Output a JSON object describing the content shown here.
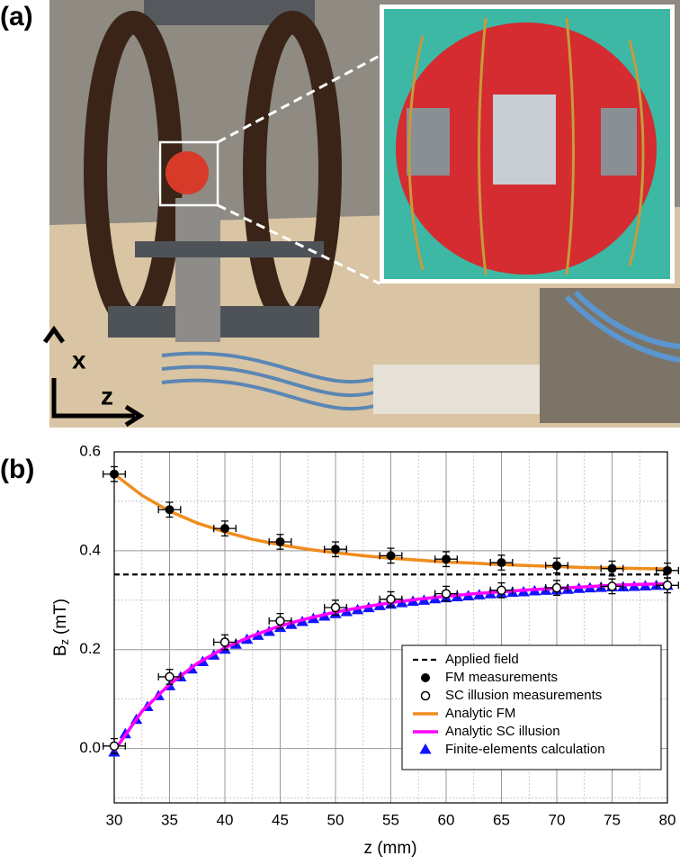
{
  "photo": {
    "panel_label": "(a)",
    "axis_labels": [
      "x",
      "z"
    ]
  },
  "chart_data": {
    "type": "line",
    "panel_label": "(b)",
    "xlabel": "z (mm)",
    "ylabel": [
      "B",
      "z",
      "(mT)"
    ],
    "xlim": [
      30,
      80
    ],
    "ylim": [
      -0.11,
      0.6
    ],
    "xticks": [
      30,
      35,
      40,
      45,
      50,
      55,
      60,
      65,
      70,
      75,
      80
    ],
    "yticks": [
      {
        "value": 0,
        "label": "0.0"
      },
      0.2,
      0.4,
      0.6
    ],
    "xticks_minor": [
      32.5,
      37.5,
      42.5,
      47.5,
      52.5,
      57.5,
      62.5,
      67.5,
      72.5,
      77.5
    ],
    "yticks_minor": [
      -0.1,
      0.1,
      0.3,
      0.5
    ],
    "grid": true,
    "legend": "lower right",
    "series": [
      {
        "name": "Applied field",
        "style": "dashed-hline",
        "color": "#000000",
        "values": [
          0.352
        ]
      },
      {
        "name": "FM measurements",
        "style": "marker-filled",
        "color": "#000000",
        "x": [
          30,
          35,
          40,
          45,
          50,
          55,
          60,
          65,
          70,
          75,
          80
        ],
        "values": [
          0.555,
          0.483,
          0.445,
          0.418,
          0.403,
          0.39,
          0.383,
          0.376,
          0.37,
          0.364,
          0.36
        ],
        "xerr": 1,
        "yerr": 0.015
      },
      {
        "name": "SC illusion measurements",
        "style": "marker-open",
        "color": "#000000",
        "x": [
          30,
          35,
          40,
          45,
          50,
          55,
          60,
          65,
          70,
          75,
          80
        ],
        "values": [
          0.005,
          0.145,
          0.215,
          0.258,
          0.285,
          0.302,
          0.313,
          0.32,
          0.325,
          0.328,
          0.33
        ],
        "xerr": 1,
        "yerr": 0.015
      },
      {
        "name": "Analytic FM",
        "style": "line",
        "color": "#f08c1e",
        "x": [
          30,
          32.5,
          35,
          37.5,
          40,
          42.5,
          45,
          47.5,
          50,
          52.5,
          55,
          57.5,
          60,
          62.5,
          65,
          67.5,
          70,
          72.5,
          75,
          77.5,
          80
        ],
        "values": [
          0.555,
          0.512,
          0.48,
          0.456,
          0.438,
          0.423,
          0.412,
          0.403,
          0.396,
          0.39,
          0.385,
          0.381,
          0.377,
          0.375,
          0.372,
          0.37,
          0.368,
          0.366,
          0.365,
          0.364,
          0.363
        ]
      },
      {
        "name": "Analytic SC illusion",
        "style": "line",
        "color": "#ff00ff",
        "x": [
          30,
          32.5,
          35,
          37.5,
          40,
          42.5,
          45,
          47.5,
          50,
          52.5,
          55,
          57.5,
          60,
          62.5,
          65,
          67.5,
          70,
          72.5,
          75,
          77.5,
          80
        ],
        "values": [
          -0.005,
          0.075,
          0.13,
          0.172,
          0.204,
          0.228,
          0.248,
          0.263,
          0.276,
          0.286,
          0.295,
          0.302,
          0.308,
          0.313,
          0.317,
          0.321,
          0.324,
          0.327,
          0.33,
          0.332,
          0.333
        ]
      },
      {
        "name": "Finite-elements calculation",
        "style": "triangle",
        "color": "#1414ff",
        "x": [
          30,
          31,
          32,
          33,
          34,
          35,
          36,
          37,
          38,
          39,
          40,
          41,
          42,
          43,
          44,
          45,
          46,
          47,
          48,
          49,
          50,
          51,
          52,
          53,
          54,
          55,
          56,
          57,
          58,
          59,
          60,
          61,
          62,
          63,
          64,
          65,
          66,
          67,
          68,
          69,
          70,
          71,
          72,
          73,
          74,
          75,
          76,
          77,
          78,
          79,
          80
        ],
        "values": [
          -0.008,
          0.029,
          0.058,
          0.084,
          0.106,
          0.126,
          0.144,
          0.16,
          0.175,
          0.188,
          0.2,
          0.21,
          0.22,
          0.228,
          0.236,
          0.244,
          0.25,
          0.256,
          0.262,
          0.267,
          0.272,
          0.276,
          0.28,
          0.284,
          0.288,
          0.291,
          0.294,
          0.297,
          0.299,
          0.302,
          0.304,
          0.306,
          0.308,
          0.31,
          0.312,
          0.313,
          0.315,
          0.316,
          0.318,
          0.319,
          0.32,
          0.321,
          0.323,
          0.324,
          0.325,
          0.326,
          0.326,
          0.327,
          0.328,
          0.329,
          0.329
        ]
      }
    ]
  }
}
